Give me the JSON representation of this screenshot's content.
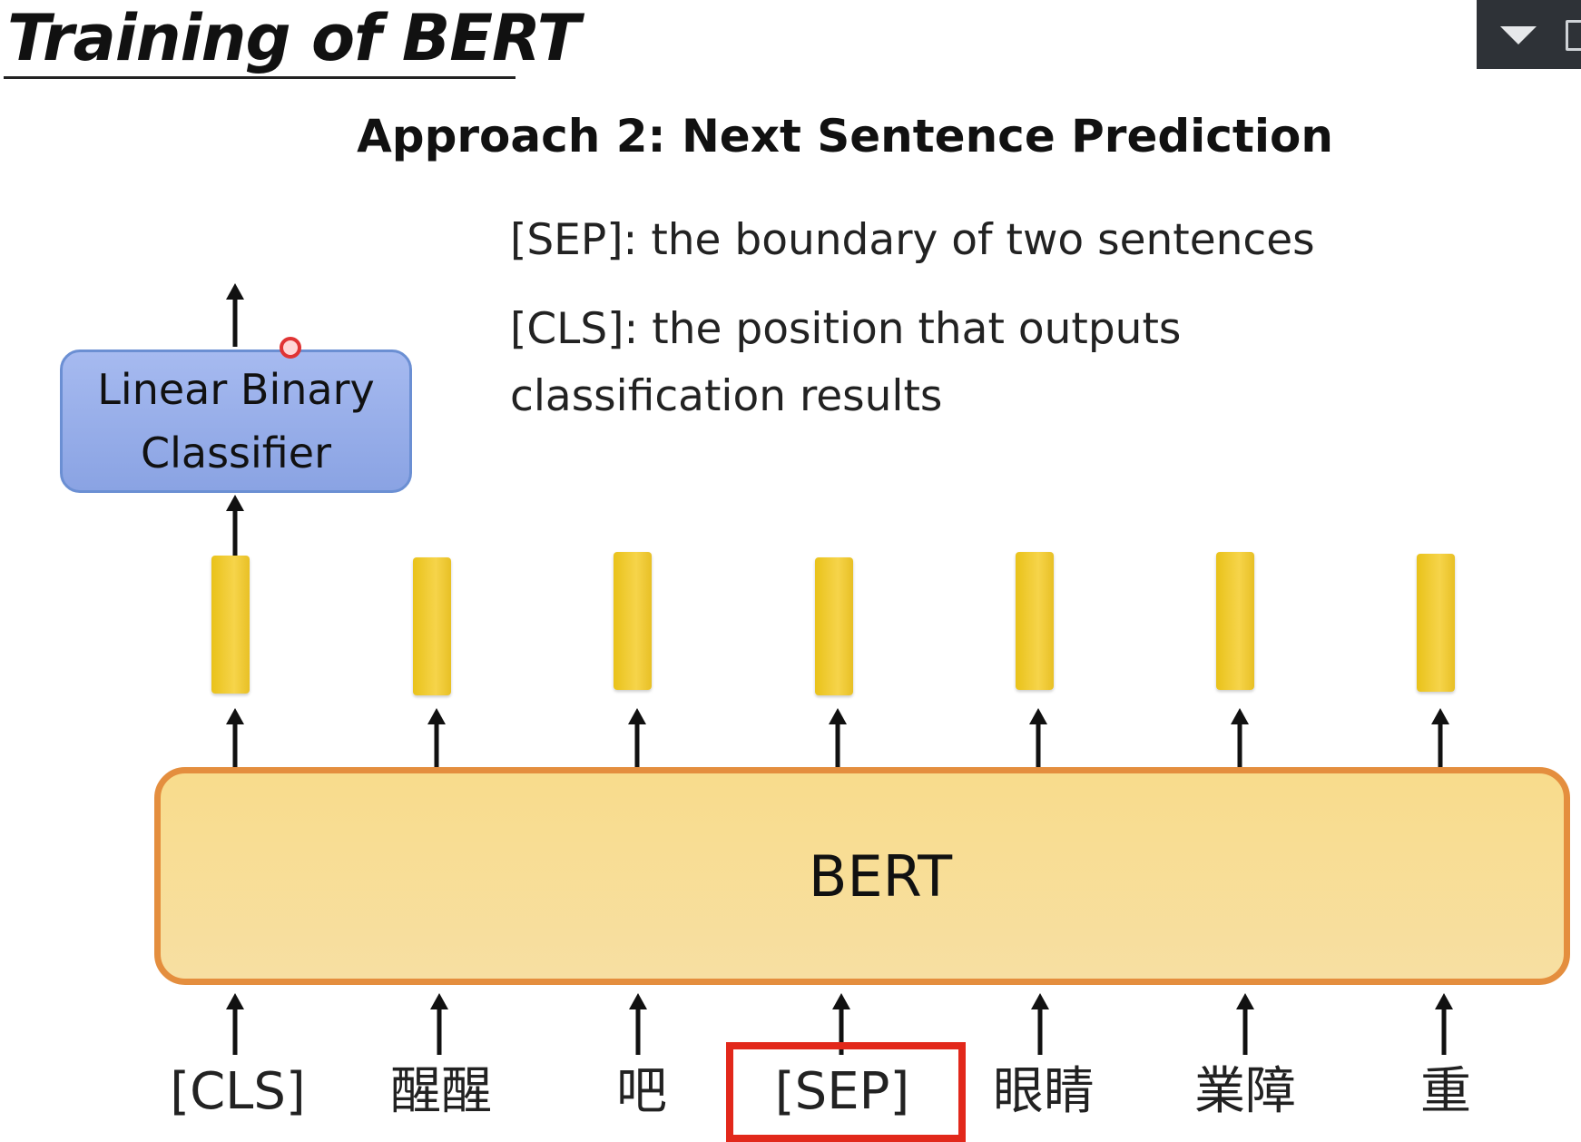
{
  "slide": {
    "title": "Training of BERT",
    "subtitle": "Approach 2: Next Sentence Prediction"
  },
  "definitions": {
    "sep": "[SEP]: the boundary of two sentences",
    "cls_line1": "[CLS]: the position that outputs",
    "cls_line2": "classification results"
  },
  "classifier": {
    "line1": "Linear Binary",
    "line2": "Classifier"
  },
  "model": {
    "label": "BERT"
  },
  "tokens": [
    "[CLS]",
    "醒醒",
    "吧",
    "[SEP]",
    "眼睛",
    "業障",
    "重"
  ],
  "highlighted_token": "[SEP]",
  "colors": {
    "classifier_fill": "#97aeea",
    "bert_fill": "#f8dc8c",
    "bert_border": "#e48e3e",
    "embedding": "#f2cf3a",
    "highlight": "#e2281b"
  },
  "icons": {
    "toolbar": [
      "dropdown-triangle-icon",
      "window-icon"
    ],
    "pointer": "cursor-dot-icon"
  }
}
